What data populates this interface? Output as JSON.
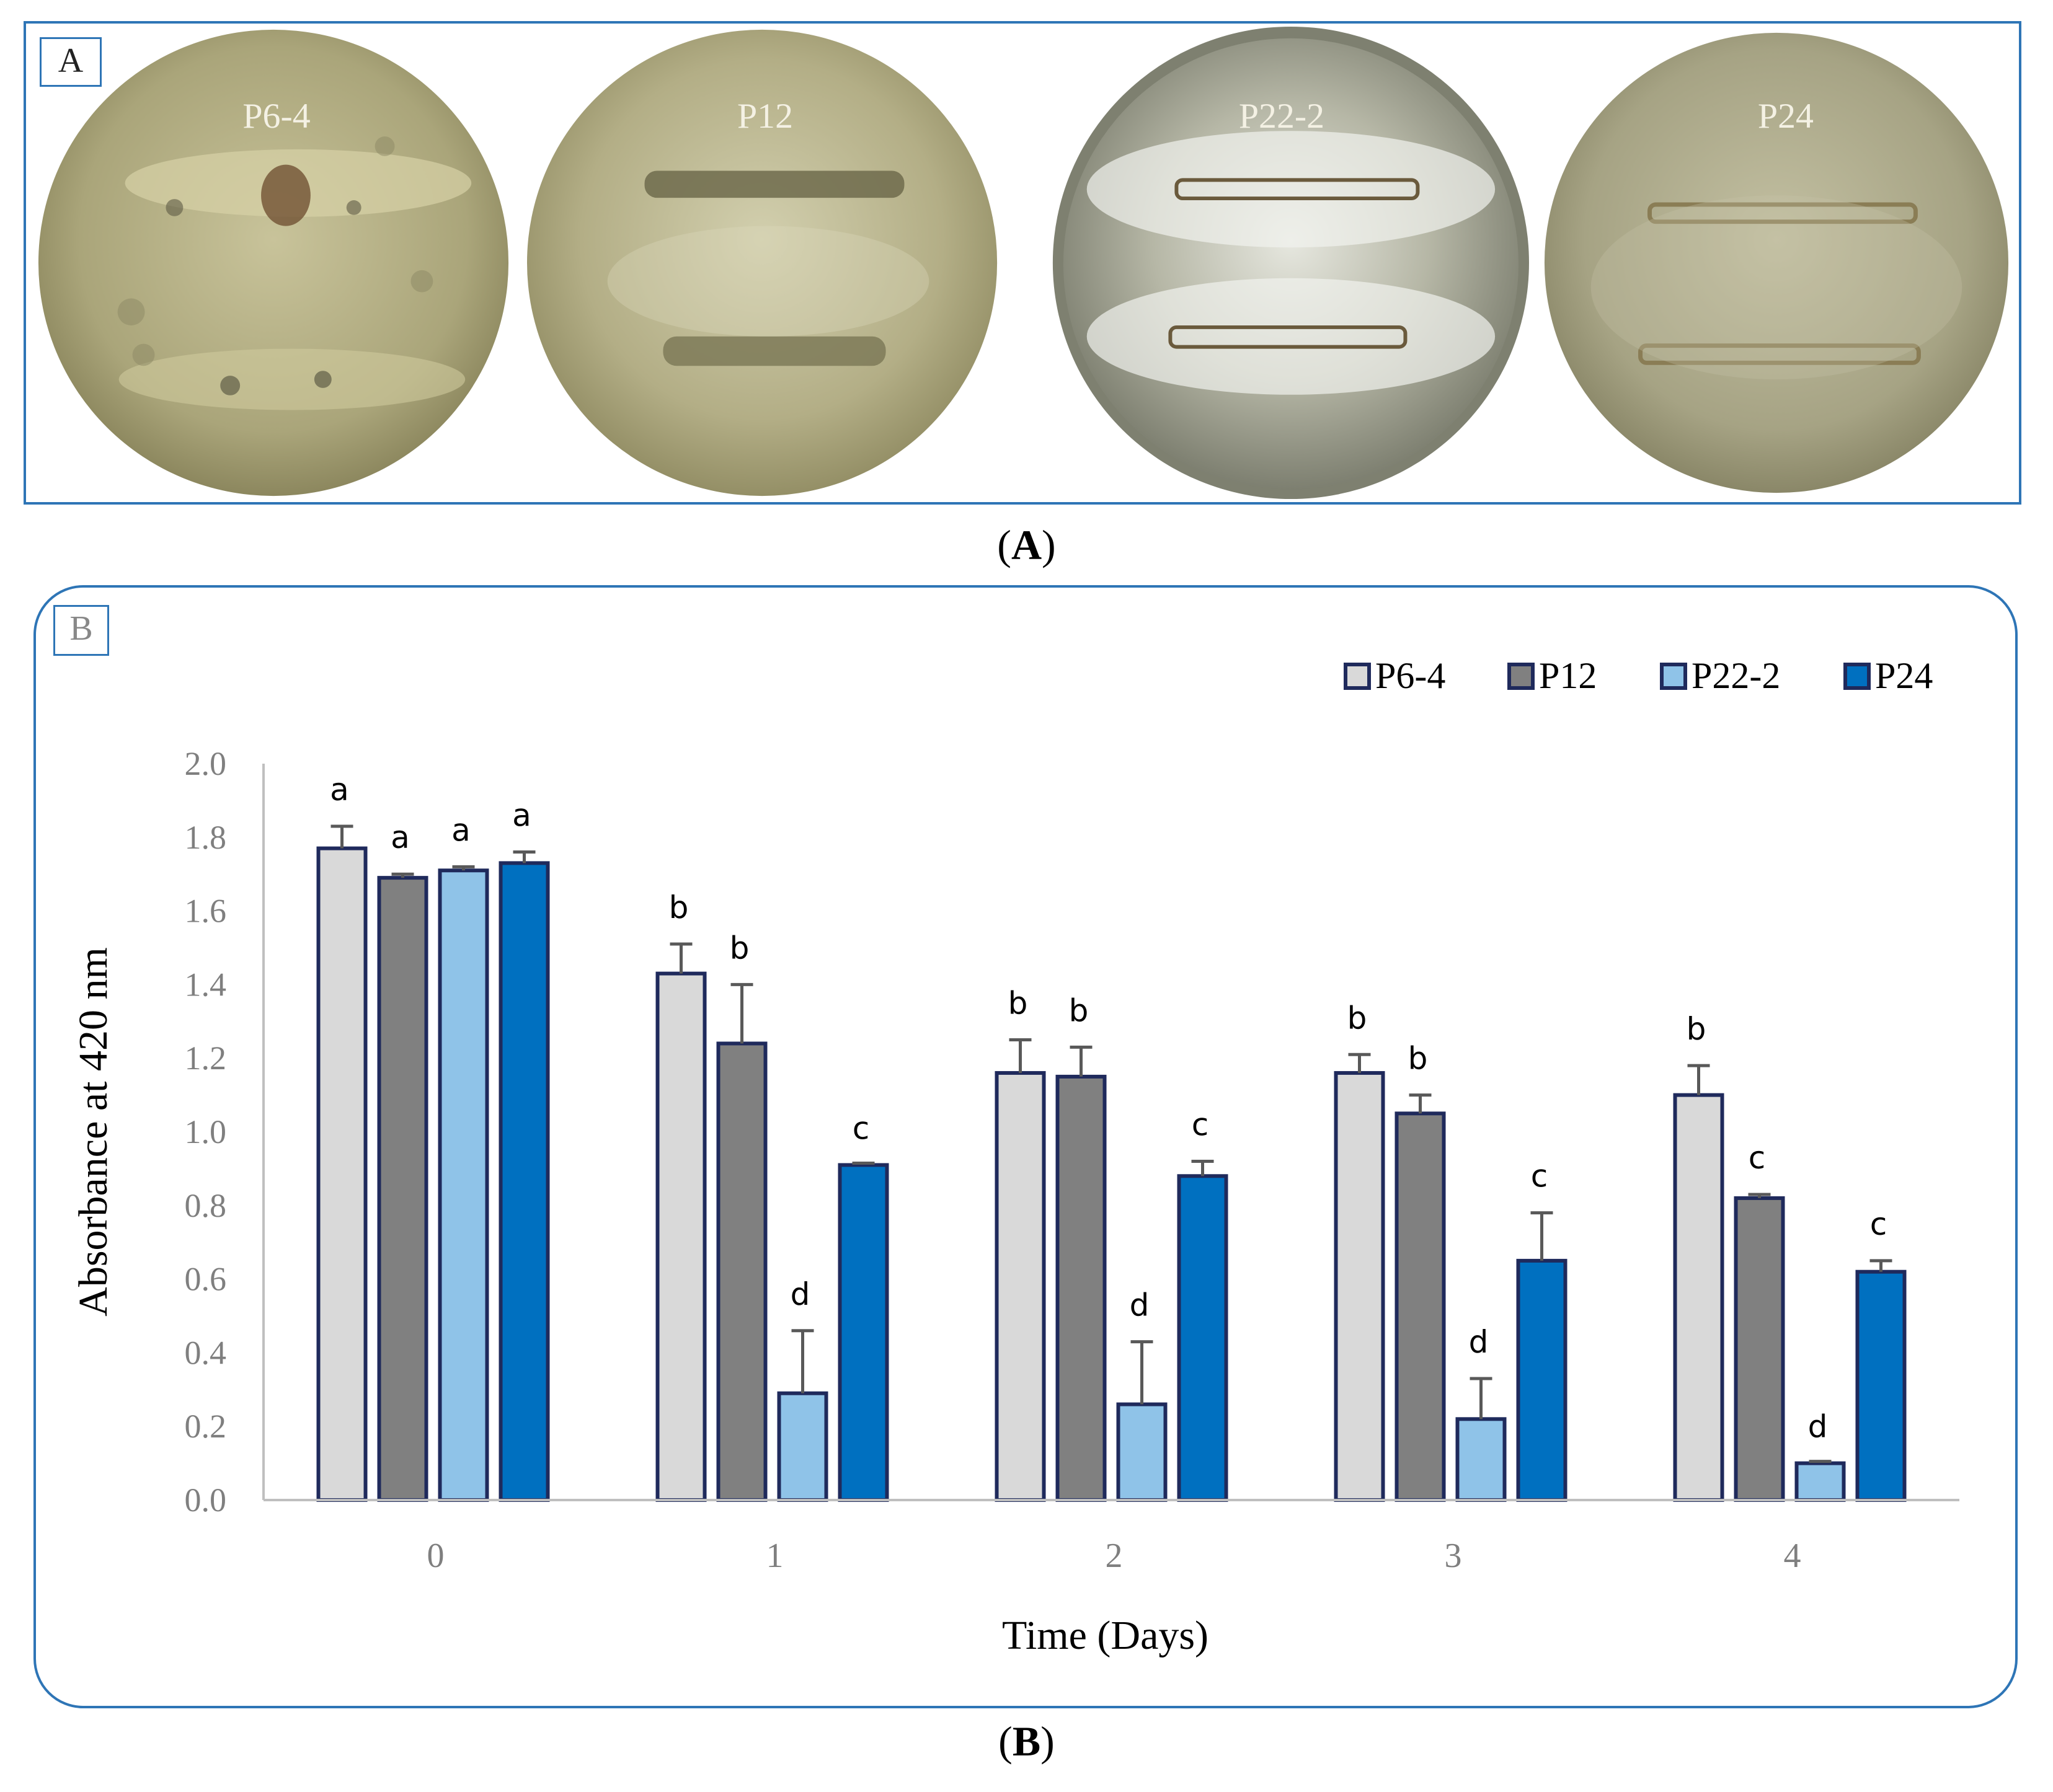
{
  "panel_a": {
    "tag": "A",
    "caption_letter": "A",
    "plates": [
      {
        "label": "P6-4"
      },
      {
        "label": "P12"
      },
      {
        "label": "P22-2"
      },
      {
        "label": "P24"
      }
    ]
  },
  "panel_b": {
    "tag": "B",
    "caption_letter": "B"
  },
  "colors": {
    "P6-4": "#d9d9d9",
    "P12": "#808080",
    "P22-2": "#8fc3e8",
    "P24": "#0070c0",
    "bar_border": "#1f2a5c",
    "panel_border": "#2e75b6"
  },
  "chart_data": {
    "type": "bar",
    "title": "",
    "xlabel": "Time (Days)",
    "ylabel": "Absorbance at 420 nm",
    "ylim": [
      0,
      2.0
    ],
    "yticks": [
      "0.0",
      "0.2",
      "0.4",
      "0.6",
      "0.8",
      "1.0",
      "1.2",
      "1.4",
      "1.6",
      "1.8",
      "2.0"
    ],
    "categories": [
      "0",
      "1",
      "2",
      "3",
      "4"
    ],
    "legend_position": "top-right",
    "series": [
      {
        "name": "P6-4",
        "values": [
          1.77,
          1.43,
          1.16,
          1.16,
          1.1
        ],
        "errors": [
          0.06,
          0.08,
          0.09,
          0.05,
          0.08
        ],
        "letters": [
          "a",
          "b",
          "b",
          "b",
          "b"
        ]
      },
      {
        "name": "P12",
        "values": [
          1.69,
          1.24,
          1.15,
          1.05,
          0.82
        ],
        "errors": [
          0.01,
          0.16,
          0.08,
          0.05,
          0.01
        ],
        "letters": [
          "a",
          "b",
          "b",
          "b",
          "c"
        ]
      },
      {
        "name": "P22-2",
        "values": [
          1.71,
          0.29,
          0.26,
          0.22,
          0.1
        ],
        "errors": [
          0.01,
          0.17,
          0.17,
          0.11,
          0.0
        ],
        "letters": [
          "a",
          "d",
          "d",
          "d",
          "d"
        ]
      },
      {
        "name": "P24",
        "values": [
          1.73,
          0.91,
          0.88,
          0.65,
          0.62
        ],
        "errors": [
          0.03,
          0.0,
          0.04,
          0.13,
          0.03
        ],
        "letters": [
          "a",
          "c",
          "c",
          "c",
          "c"
        ]
      }
    ]
  }
}
